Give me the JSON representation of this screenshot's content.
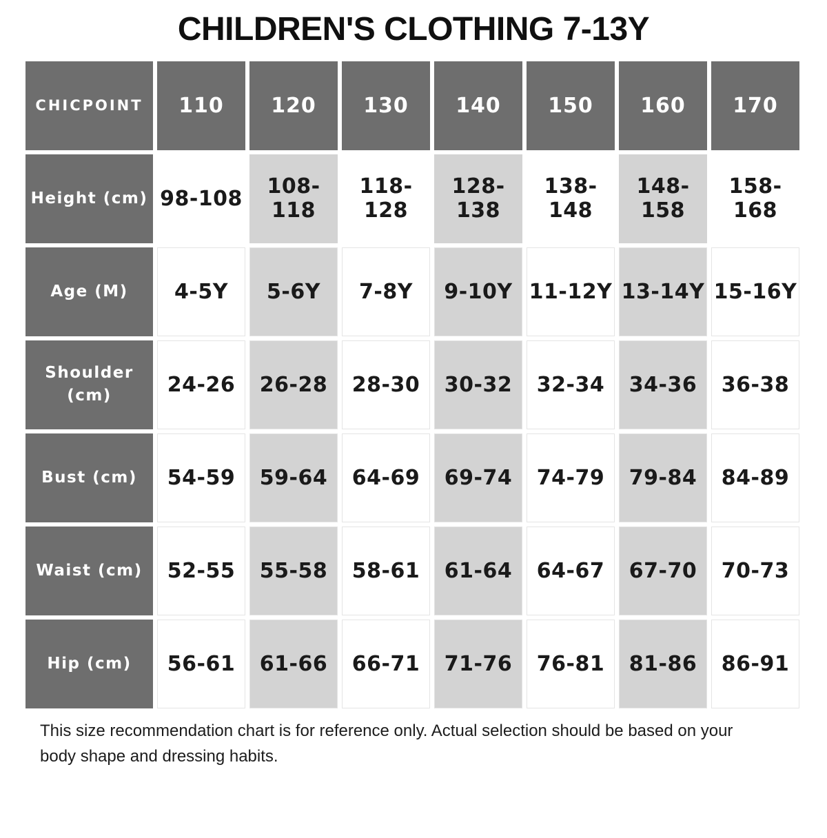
{
  "title": "CHILDREN'S CLOTHING 7-13Y",
  "table": {
    "corner_label": "CHICPOINT",
    "size_headers": [
      "110",
      "120",
      "130",
      "140",
      "150",
      "160",
      "170"
    ],
    "rows": [
      {
        "label": "Height (cm)",
        "values": [
          "98-108",
          "108-118",
          "118-128",
          "128-138",
          "138-148",
          "148-158",
          "158-168"
        ]
      },
      {
        "label": "Age (M)",
        "values": [
          "4-5Y",
          "5-6Y",
          "7-8Y",
          "9-10Y",
          "11-12Y",
          "13-14Y",
          "15-16Y"
        ]
      },
      {
        "label": "Shoulder (cm)",
        "values": [
          "24-26",
          "26-28",
          "28-30",
          "30-32",
          "32-34",
          "34-36",
          "36-38"
        ]
      },
      {
        "label": "Bust (cm)",
        "values": [
          "54-59",
          "59-64",
          "64-69",
          "69-74",
          "74-79",
          "79-84",
          "84-89"
        ]
      },
      {
        "label": "Waist (cm)",
        "values": [
          "52-55",
          "55-58",
          "58-61",
          "61-64",
          "64-67",
          "67-70",
          "70-73"
        ]
      },
      {
        "label": "Hip (cm)",
        "values": [
          "56-61",
          "61-66",
          "66-71",
          "71-76",
          "76-81",
          "81-86",
          "86-91"
        ]
      }
    ]
  },
  "footer": {
    "lines": [
      "This size recommendation chart is for reference only. Actual selection should be based on your",
      "body shape and dressing habits."
    ]
  },
  "colors": {
    "header_bg": "#6e6e6e",
    "header_text": "#ffffff",
    "alt_column_bg": "#d3d3d3",
    "cell_border": "#e4e4e4",
    "value_text": "#1a1a1a",
    "page_bg": "#ffffff"
  },
  "chart_data": {
    "type": "table",
    "title": "CHILDREN'S CLOTHING 7-13Y",
    "columns": [
      "CHICPOINT",
      "110",
      "120",
      "130",
      "140",
      "150",
      "160",
      "170"
    ],
    "rows": [
      [
        "Height (cm)",
        "98-108",
        "108-118",
        "118-128",
        "128-138",
        "138-148",
        "148-158",
        "158-168"
      ],
      [
        "Age (M)",
        "4-5Y",
        "5-6Y",
        "7-8Y",
        "9-10Y",
        "11-12Y",
        "13-14Y",
        "15-16Y"
      ],
      [
        "Shoulder (cm)",
        "24-26",
        "26-28",
        "28-30",
        "30-32",
        "32-34",
        "34-36",
        "36-38"
      ],
      [
        "Bust (cm)",
        "54-59",
        "59-64",
        "64-69",
        "69-74",
        "74-79",
        "79-84",
        "84-89"
      ],
      [
        "Waist (cm)",
        "52-55",
        "55-58",
        "58-61",
        "61-64",
        "64-67",
        "67-70",
        "70-73"
      ],
      [
        "Hip (cm)",
        "56-61",
        "61-66",
        "66-71",
        "71-76",
        "76-81",
        "81-86",
        "86-91"
      ]
    ],
    "notes": "Columns 120, 140, 160 shaded light gray; header row and label column dark gray"
  }
}
